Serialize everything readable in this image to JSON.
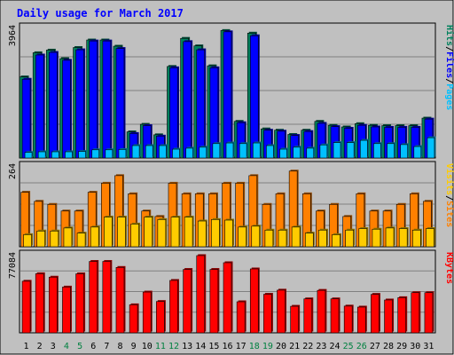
{
  "chart_data": {
    "type": "bar",
    "title": "Daily usage for March 2017",
    "categories": [
      "1",
      "2",
      "3",
      "4",
      "5",
      "6",
      "7",
      "8",
      "9",
      "10",
      "11",
      "12",
      "13",
      "14",
      "15",
      "16",
      "17",
      "18",
      "19",
      "20",
      "21",
      "22",
      "23",
      "24",
      "25",
      "26",
      "27",
      "28",
      "29",
      "30",
      "31"
    ],
    "weekend_days": [
      "4",
      "5",
      "11",
      "12",
      "18",
      "19",
      "25",
      "26"
    ],
    "panels": [
      {
        "id": "pages-files-hits",
        "ymax_label": "3964",
        "ymax": 3964,
        "axis_labels": [
          {
            "text": "Hits",
            "color": "#00805c"
          },
          {
            "text": "Files",
            "color": "#0000ff"
          },
          {
            "text": "Pages",
            "color": "#00c0ff"
          }
        ],
        "series": [
          {
            "name": "Hits",
            "color": "#00805c",
            "values": [
              2480,
              3220,
              3300,
              3040,
              3380,
              3610,
              3610,
              3420,
              800,
              1030,
              710,
              2800,
              3660,
              3430,
              2820,
              3900,
              1120,
              3820,
              890,
              850,
              720,
              850,
              1120,
              1000,
              950,
              1050,
              1000,
              990,
              990,
              990,
              1220
            ]
          },
          {
            "name": "Files",
            "color": "#0000ff",
            "values": [
              2410,
              3150,
              3230,
              2990,
              3310,
              3580,
              3580,
              3350,
              750,
              990,
              670,
              2760,
              3560,
              3310,
              2760,
              3860,
              1080,
              3740,
              850,
              820,
              690,
              810,
              1060,
              960,
              910,
              1000,
              950,
              940,
              940,
              940,
              1190
            ]
          },
          {
            "name": "Pages",
            "color": "#00c0ff",
            "values": [
              170,
              190,
              190,
              190,
              200,
              250,
              250,
              260,
              380,
              380,
              380,
              270,
              300,
              330,
              440,
              460,
              440,
              460,
              380,
              270,
              330,
              300,
              400,
              470,
              470,
              540,
              440,
              440,
              410,
              350,
              620
            ]
          }
        ]
      },
      {
        "id": "visits-sites",
        "ymax_label": "264",
        "ymax": 264,
        "axis_labels": [
          {
            "text": "Visits",
            "color": "#ffcc00"
          },
          {
            "text": "/",
            "color": "#000000"
          },
          {
            "text": "Sites",
            "color": "#ff8000"
          }
        ],
        "series": [
          {
            "name": "Visits",
            "color": "#ff8000",
            "values": [
              180,
              150,
              140,
              118,
              118,
              180,
              210,
              235,
              175,
              118,
              100,
              210,
              175,
              175,
              175,
              210,
              210,
              235,
              140,
              175,
              250,
              175,
              118,
              140,
              100,
              175,
              118,
              118,
              140,
              175,
              150
            ]
          },
          {
            "name": "Sites",
            "color": "#ffcc00",
            "values": [
              40,
              52,
              52,
              62,
              45,
              65,
              98,
              98,
              75,
              98,
              90,
              98,
              98,
              85,
              90,
              88,
              65,
              68,
              55,
              55,
              65,
              45,
              55,
              40,
              55,
              60,
              58,
              62,
              60,
              55,
              60
            ]
          }
        ]
      },
      {
        "id": "kbytes",
        "ymax_label": "77084",
        "ymax": 77084,
        "axis_labels": [
          {
            "text": "KBytes",
            "color": "#ff0000"
          }
        ],
        "series": [
          {
            "name": "KBytes",
            "color": "#ff0000",
            "values": [
              51500,
              59000,
              55600,
              45700,
              58900,
              71300,
              71300,
              65300,
              28000,
              40700,
              31300,
              52300,
              63300,
              77100,
              63300,
              70000,
              31000,
              63800,
              38500,
              42600,
              26500,
              33900,
              42400,
              33900,
              26700,
              25700,
              38400,
              32800,
              35100,
              40100,
              40100
            ]
          }
        ]
      }
    ],
    "grid": true,
    "colors": {
      "background": "#c0c0c0",
      "plot_background": "#c0c0c0",
      "title": "#0000ff",
      "gridline": "#808080",
      "weekend_label": "#008040",
      "weekday_label": "#000000"
    }
  }
}
